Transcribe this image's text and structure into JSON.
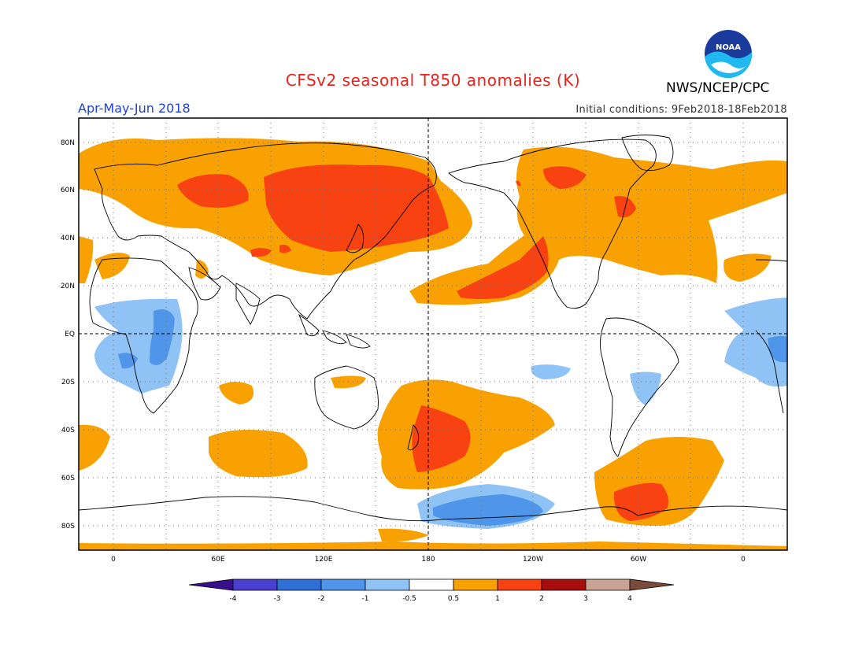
{
  "header": {
    "title": "CFSv2 seasonal T850 anomalies (K)",
    "agency": "NWS/NCEP/CPC",
    "season": "Apr-May-Jun 2018",
    "initial_conditions": "Initial conditions: 9Feb2018-18Feb2018",
    "logo_text": "NOAA"
  },
  "axes": {
    "lat_labels": [
      "80N",
      "60N",
      "40N",
      "20N",
      "EQ",
      "20S",
      "40S",
      "60S",
      "80S"
    ],
    "lon_labels": [
      "0",
      "60E",
      "120E",
      "180",
      "120W",
      "60W",
      "0"
    ]
  },
  "legend": {
    "tick_labels": [
      "-4",
      "-3",
      "-2",
      "-1",
      "-0.5",
      "0.5",
      "1",
      "2",
      "3",
      "4"
    ],
    "colors": [
      "#3a0f8c",
      "#4a3fd0",
      "#2f6fd8",
      "#4f96ea",
      "#8fc3f5",
      "#ffffff",
      "#f8a100",
      "#f94212",
      "#a80d0d",
      "#c9a391",
      "#7a4a3a"
    ]
  }
}
